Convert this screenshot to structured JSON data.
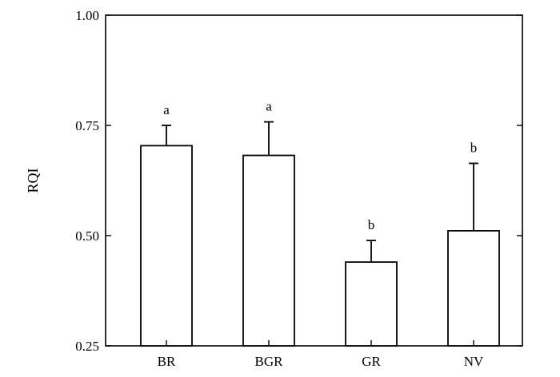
{
  "chart_data": {
    "type": "bar",
    "categories": [
      "BR",
      "BGR",
      "GR",
      "NV"
    ],
    "values": [
      0.704,
      0.682,
      0.44,
      0.511
    ],
    "error_upper": [
      0.75,
      0.758,
      0.489,
      0.664
    ],
    "significance": [
      "a",
      "a",
      "b",
      "b"
    ],
    "title": "",
    "xlabel": "",
    "ylabel": "RQI",
    "ylim": [
      0.25,
      1.0
    ],
    "yticks": [
      "0.25",
      "0.50",
      "0.75",
      "1.00"
    ],
    "grid": false,
    "legend": "none",
    "bar_fill": "#ffffff",
    "bar_stroke": "#000000"
  }
}
